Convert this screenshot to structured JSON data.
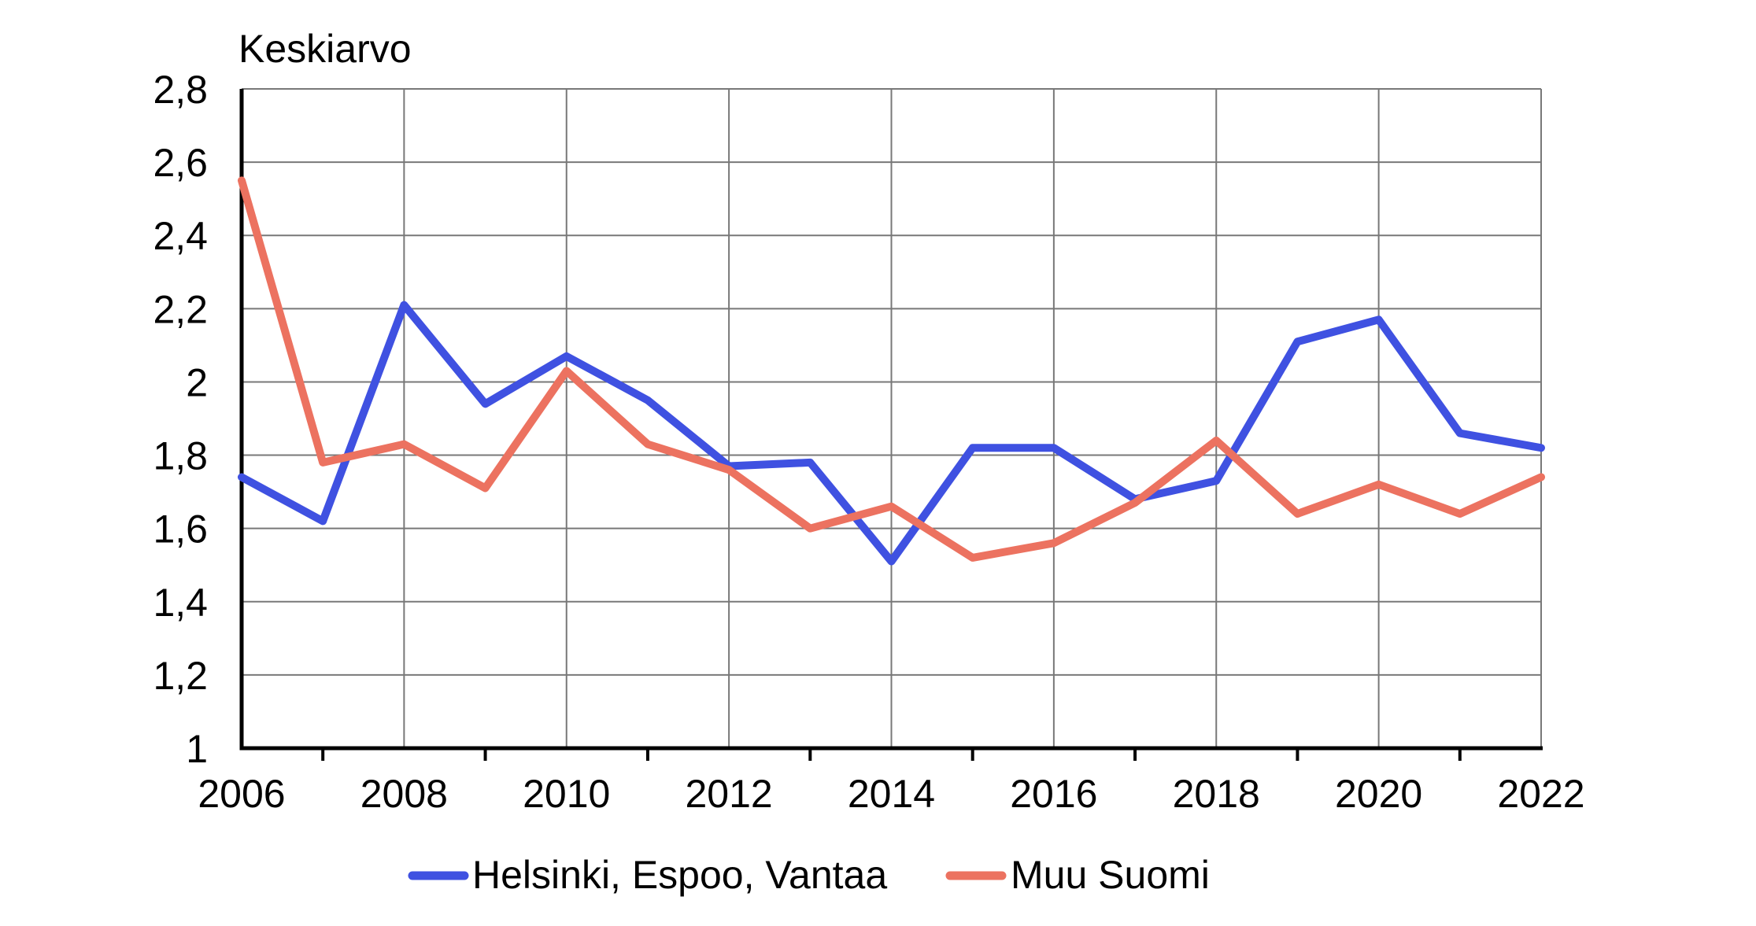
{
  "chart_data": {
    "type": "line",
    "title": "Keskiarvo",
    "x": [
      2006,
      2007,
      2008,
      2009,
      2010,
      2011,
      2012,
      2013,
      2014,
      2015,
      2016,
      2017,
      2018,
      2019,
      2020,
      2021,
      2022
    ],
    "x_tick_labels": [
      "2006",
      "2008",
      "2010",
      "2012",
      "2014",
      "2016",
      "2018",
      "2020",
      "2022"
    ],
    "y_ticks": [
      {
        "value": 1.0,
        "label": "1"
      },
      {
        "value": 1.2,
        "label": "1,2"
      },
      {
        "value": 1.4,
        "label": "1,4"
      },
      {
        "value": 1.6,
        "label": "1,6"
      },
      {
        "value": 1.8,
        "label": "1,8"
      },
      {
        "value": 2.0,
        "label": "2"
      },
      {
        "value": 2.2,
        "label": "2,2"
      },
      {
        "value": 2.4,
        "label": "2,4"
      },
      {
        "value": 2.6,
        "label": "2,6"
      },
      {
        "value": 2.8,
        "label": "2,8"
      }
    ],
    "ylim": [
      1.0,
      2.8
    ],
    "xlim": [
      2006,
      2022
    ],
    "grid": true,
    "legend_position": "bottom",
    "colors": {
      "grid": "#787878",
      "axis": "#000000",
      "text": "#000000",
      "background": "#ffffff"
    },
    "series": [
      {
        "name": "Helsinki, Espoo, Vantaa",
        "color": "#3F51E1",
        "values": [
          1.74,
          1.62,
          2.21,
          1.94,
          2.07,
          1.95,
          1.77,
          1.78,
          1.51,
          1.82,
          1.82,
          1.68,
          1.73,
          2.11,
          2.17,
          1.86,
          1.82
        ]
      },
      {
        "name": "Muu Suomi",
        "color": "#EC7260",
        "values": [
          2.55,
          1.78,
          1.83,
          1.71,
          2.03,
          1.83,
          1.76,
          1.6,
          1.66,
          1.52,
          1.56,
          1.67,
          1.84,
          1.64,
          1.72,
          1.64,
          1.74
        ]
      }
    ]
  }
}
